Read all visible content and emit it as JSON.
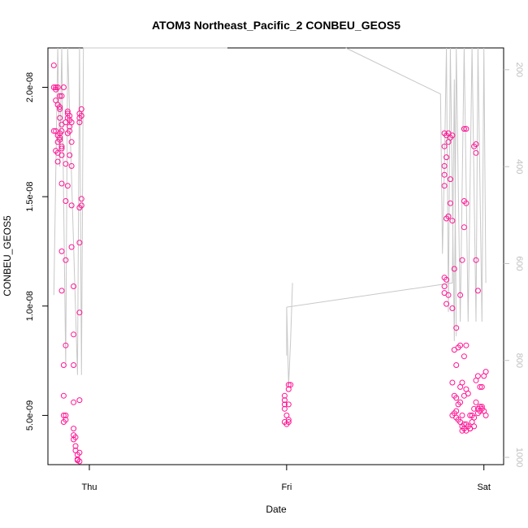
{
  "chart_data": {
    "type": "scatter",
    "title": "ATOM3 Northeast_Pacific_2 CONBEU_GEOS5",
    "xlabel": "Date",
    "ylabel": "CONBEU_GEOS5",
    "x_ticks": [
      "Thu",
      "Fri",
      "Sat"
    ],
    "x_tick_values": [
      0,
      1,
      2
    ],
    "xlim": [
      -0.21,
      2.1
    ],
    "ylim": [
      2.75e-09,
      2.18e-08
    ],
    "y_ticks": [
      5e-09,
      1e-08,
      1.5e-08,
      2e-08
    ],
    "y_tick_labels": [
      "5.0e-09",
      "1.0e-08",
      "1.5e-08",
      "2.0e-08"
    ],
    "y2_label": "",
    "y2_lim": [
      1015,
      155
    ],
    "y2_ticks": [
      200,
      400,
      600,
      800,
      1000
    ],
    "y2_tick_labels": [
      "200",
      "400",
      "600",
      "800",
      "1000"
    ],
    "marker_color": "#ff1493",
    "line_color": "#c8c8c8",
    "series": [
      {
        "label": "",
        "points": [
          [
            -0.18,
            2.1e-08
          ],
          [
            -0.18,
            2e-08
          ],
          [
            -0.17,
            2e-08
          ],
          [
            -0.17,
            1.99e-08
          ],
          [
            -0.16,
            2e-08
          ],
          [
            -0.17,
            1.94e-08
          ],
          [
            -0.16,
            1.92e-08
          ],
          [
            -0.15,
            1.96e-08
          ],
          [
            -0.14,
            1.96e-08
          ],
          [
            -0.15,
            1.91e-08
          ],
          [
            -0.15,
            1.9e-08
          ],
          [
            -0.18,
            1.8e-08
          ],
          [
            -0.17,
            1.8e-08
          ],
          [
            -0.16,
            1.78e-08
          ],
          [
            -0.15,
            1.79e-08
          ],
          [
            -0.14,
            1.8e-08
          ],
          [
            -0.15,
            1.77e-08
          ],
          [
            -0.16,
            1.75e-08
          ],
          [
            -0.14,
            1.73e-08
          ],
          [
            -0.14,
            1.72e-08
          ],
          [
            -0.17,
            1.71e-08
          ],
          [
            -0.16,
            1.7e-08
          ],
          [
            -0.14,
            1.69e-08
          ],
          [
            -0.16,
            1.66e-08
          ],
          [
            -0.15,
            1.76e-08
          ],
          [
            -0.15,
            1.86e-08
          ],
          [
            -0.14,
            1.83e-08
          ],
          [
            -0.12,
            1.84e-08
          ],
          [
            -0.11,
            1.89e-08
          ],
          [
            -0.11,
            1.88e-08
          ],
          [
            -0.1,
            1.87e-08
          ],
          [
            -0.11,
            1.86e-08
          ],
          [
            -0.1,
            1.85e-08
          ],
          [
            -0.09,
            1.84e-08
          ],
          [
            -0.1,
            1.82e-08
          ],
          [
            -0.1,
            1.8e-08
          ],
          [
            -0.11,
            1.79e-08
          ],
          [
            -0.09,
            1.75e-08
          ],
          [
            -0.1,
            1.69e-08
          ],
          [
            -0.12,
            1.65e-08
          ],
          [
            -0.09,
            1.64e-08
          ],
          [
            -0.14,
            1.56e-08
          ],
          [
            -0.12,
            1.48e-08
          ],
          [
            -0.09,
            1.46e-08
          ],
          [
            -0.11,
            1.55e-08
          ],
          [
            -0.09,
            1.27e-08
          ],
          [
            -0.14,
            1.25e-08
          ],
          [
            -0.12,
            1.21e-08
          ],
          [
            -0.08,
            1.09e-08
          ],
          [
            -0.14,
            1.07e-08
          ],
          [
            -0.08,
            8.7e-09
          ],
          [
            -0.12,
            8.2e-09
          ],
          [
            -0.13,
            7.3e-09
          ],
          [
            -0.08,
            7.3e-09
          ],
          [
            -0.13,
            5.9e-09
          ],
          [
            -0.08,
            5.6e-09
          ],
          [
            -0.12,
            5e-09
          ],
          [
            -0.13,
            5e-09
          ],
          [
            -0.12,
            4.8e-09
          ],
          [
            -0.13,
            4.7e-09
          ],
          [
            -0.08,
            4.4e-09
          ],
          [
            -0.08,
            4.1e-09
          ],
          [
            -0.07,
            4e-09
          ],
          [
            -0.08,
            3.9e-09
          ],
          [
            -0.07,
            3.6e-09
          ],
          [
            -0.07,
            3.4e-09
          ],
          [
            -0.06,
            3.2e-09
          ],
          [
            -0.05,
            3.3e-09
          ],
          [
            -0.06,
            3e-09
          ],
          [
            -0.05,
            2.9e-09
          ],
          [
            -0.06,
            2.95e-09
          ],
          [
            -0.05,
            1.29e-08
          ],
          [
            -0.05,
            9.7e-09
          ],
          [
            -0.04,
            1.49e-08
          ],
          [
            -0.04,
            1.46e-08
          ],
          [
            -0.05,
            1.45e-08
          ],
          [
            -0.05,
            1.86e-08
          ],
          [
            -0.04,
            1.87e-08
          ],
          [
            -0.04,
            1.9e-08
          ],
          [
            -0.05,
            1.88e-08
          ],
          [
            -0.05,
            1.84e-08
          ],
          [
            -0.05,
            5.7e-09
          ],
          [
            -0.13,
            2e-08
          ],
          [
            1.01,
            6.4e-09
          ],
          [
            1.02,
            6.4e-09
          ],
          [
            1.01,
            6.2e-09
          ],
          [
            0.99,
            5.9e-09
          ],
          [
            0.99,
            5.7e-09
          ],
          [
            0.99,
            5.5e-09
          ],
          [
            1.01,
            5.5e-09
          ],
          [
            0.99,
            5.3e-09
          ],
          [
            1.0,
            5e-09
          ],
          [
            1.01,
            4.8e-09
          ],
          [
            0.99,
            4.7e-09
          ],
          [
            1.0,
            4.6e-09
          ],
          [
            1.01,
            4.7e-09
          ],
          [
            1.8,
            1.79e-08
          ],
          [
            1.81,
            1.78e-08
          ],
          [
            1.82,
            1.79e-08
          ],
          [
            1.83,
            1.77e-08
          ],
          [
            1.84,
            1.78e-08
          ],
          [
            1.8,
            1.73e-08
          ],
          [
            1.82,
            1.75e-08
          ],
          [
            1.81,
            1.68e-08
          ],
          [
            1.8,
            1.64e-08
          ],
          [
            1.8,
            1.6e-08
          ],
          [
            1.8,
            1.55e-08
          ],
          [
            1.81,
            1.4e-08
          ],
          [
            1.82,
            1.41e-08
          ],
          [
            1.8,
            1.13e-08
          ],
          [
            1.81,
            1.12e-08
          ],
          [
            1.8,
            1.09e-08
          ],
          [
            1.8,
            1.06e-08
          ],
          [
            1.81,
            1.01e-08
          ],
          [
            1.82,
            1.05e-08
          ],
          [
            1.83,
            1.58e-08
          ],
          [
            1.83,
            1.47e-08
          ],
          [
            1.84,
            1.39e-08
          ],
          [
            1.85,
            1.17e-08
          ],
          [
            1.84,
            9.9e-09
          ],
          [
            1.86,
            9e-09
          ],
          [
            1.85,
            8e-09
          ],
          [
            1.87,
            8.1e-09
          ],
          [
            1.86,
            7.3e-09
          ],
          [
            1.84,
            6.5e-09
          ],
          [
            1.85,
            5.9e-09
          ],
          [
            1.86,
            5.8e-09
          ],
          [
            1.87,
            5.5e-09
          ],
          [
            1.88,
            5.6e-09
          ],
          [
            1.86,
            5.2e-09
          ],
          [
            1.85,
            5.1e-09
          ],
          [
            1.84,
            5e-09
          ],
          [
            1.86,
            4.9e-09
          ],
          [
            1.87,
            4.8e-09
          ],
          [
            1.88,
            4.7e-09
          ],
          [
            1.89,
            4.5e-09
          ],
          [
            1.9,
            4.6e-09
          ],
          [
            1.89,
            4.3e-09
          ],
          [
            1.9,
            4.4e-09
          ],
          [
            1.91,
            4.6e-09
          ],
          [
            1.92,
            4.5e-09
          ],
          [
            1.93,
            4.4e-09
          ],
          [
            1.94,
            4.7e-09
          ],
          [
            1.95,
            4.5e-09
          ],
          [
            1.94,
            5e-09
          ],
          [
            1.95,
            5.3e-09
          ],
          [
            1.96,
            5.6e-09
          ],
          [
            1.97,
            5.1e-09
          ],
          [
            1.98,
            5.2e-09
          ],
          [
            1.99,
            5.3e-09
          ],
          [
            2.0,
            5.2e-09
          ],
          [
            2.01,
            5e-09
          ],
          [
            1.99,
            5.4e-09
          ],
          [
            1.98,
            6.3e-09
          ],
          [
            1.99,
            6.3e-09
          ],
          [
            2.0,
            6.8e-09
          ],
          [
            2.01,
            7e-09
          ],
          [
            1.96,
            6.6e-09
          ],
          [
            1.97,
            6.8e-09
          ],
          [
            1.92,
            6e-09
          ],
          [
            1.9,
            5.9e-09
          ],
          [
            1.91,
            6.2e-09
          ],
          [
            1.89,
            6.5e-09
          ],
          [
            1.88,
            6.3e-09
          ],
          [
            1.9,
            7.7e-09
          ],
          [
            1.91,
            8.2e-09
          ],
          [
            1.88,
            8.2e-09
          ],
          [
            1.89,
            1.21e-08
          ],
          [
            1.9,
            1.36e-08
          ],
          [
            1.9,
            1.48e-08
          ],
          [
            1.91,
            1.47e-08
          ],
          [
            1.91,
            1.81e-08
          ],
          [
            1.9,
            1.81e-08
          ],
          [
            1.95,
            1.73e-08
          ],
          [
            1.96,
            1.74e-08
          ],
          [
            1.96,
            1.7e-08
          ],
          [
            1.96,
            1.21e-08
          ],
          [
            1.97,
            1.07e-08
          ],
          [
            1.88,
            1.05e-08
          ],
          [
            1.89,
            5e-09
          ],
          [
            1.93,
            5e-09
          ],
          [
            1.95,
            4.9e-09
          ],
          [
            1.93,
            4.4e-09
          ],
          [
            1.91,
            4.3e-09
          ],
          [
            1.97,
            5.3e-09
          ],
          [
            1.98,
            5.4e-09
          ]
        ]
      }
    ],
    "secondary_line": {
      "label": "",
      "segments": [
        [
          [
            -0.18,
            665
          ],
          [
            -0.16,
            155
          ],
          [
            -0.15,
            400
          ],
          [
            -0.14,
            155
          ],
          [
            -0.12,
            810
          ],
          [
            -0.11,
            155
          ],
          [
            -0.06,
            830
          ],
          [
            -0.05,
            155
          ],
          [
            -0.04,
            830
          ],
          [
            -0.03,
            155
          ],
          [
            0.7,
            155
          ]
        ],
        [
          [
            1.0,
            790
          ],
          [
            1.0,
            690
          ],
          [
            1.01,
            850
          ],
          [
            1.02,
            760
          ],
          [
            1.03,
            640
          ]
        ],
        [
          [
            1.0,
            690
          ],
          [
            1.84,
            640
          ],
          [
            1.85,
            220
          ],
          [
            1.86,
            750
          ]
        ],
        [
          [
            1.3,
            155
          ],
          [
            1.78,
            250
          ],
          [
            1.79,
            580
          ],
          [
            1.8,
            400
          ],
          [
            1.81,
            155
          ],
          [
            1.82,
            700
          ],
          [
            1.83,
            155
          ],
          [
            1.85,
            760
          ],
          [
            1.86,
            155
          ],
          [
            1.88,
            720
          ],
          [
            1.9,
            155
          ],
          [
            1.92,
            720
          ],
          [
            1.94,
            155
          ],
          [
            1.96,
            720
          ],
          [
            1.97,
            155
          ],
          [
            1.99,
            720
          ],
          [
            2.0,
            155
          ],
          [
            2.01,
            640
          ]
        ]
      ]
    }
  }
}
